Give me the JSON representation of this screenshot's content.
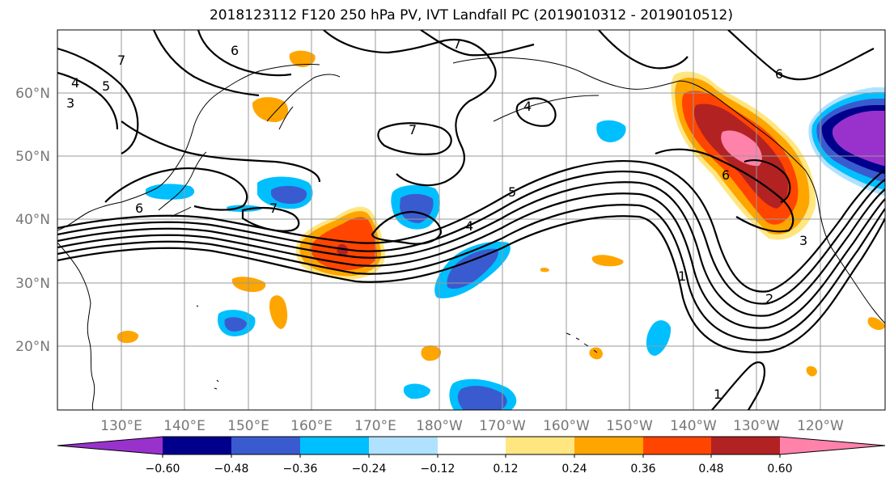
{
  "title": "2018123112 F120 250 hPa PV, IVT Landfall PC (2019010312 - 2019010512)",
  "lat_labels": [
    "60°N",
    "50°N",
    "40°N",
    "30°N",
    "20°N"
  ],
  "lon_labels": [
    "130°E",
    "140°E",
    "150°E",
    "160°E",
    "170°E",
    "180°W",
    "170°W",
    "160°W",
    "150°W",
    "140°W",
    "130°W",
    "120°W"
  ],
  "contour_labels": [
    "7",
    "6",
    "5",
    "4",
    "3",
    "7",
    "4",
    "6",
    "7",
    "7",
    "5",
    "4",
    "6",
    "1",
    "2",
    "3",
    "6",
    "1"
  ],
  "colorbar": {
    "ticks": [
      "−0.60",
      "−0.48",
      "−0.36",
      "−0.24",
      "−0.12",
      "0.12",
      "0.24",
      "0.36",
      "0.48",
      "0.60"
    ],
    "colors": [
      "#9932CC",
      "#00008B",
      "#3A5BD0",
      "#00BFFF",
      "#B0E2FF",
      "#FFFFFF",
      "#FFE680",
      "#FFA500",
      "#FF4500",
      "#B22222",
      "#FF82AB"
    ]
  },
  "palette": {
    "contour": "#000000",
    "grid": "#999999",
    "coast": "#000000"
  }
}
